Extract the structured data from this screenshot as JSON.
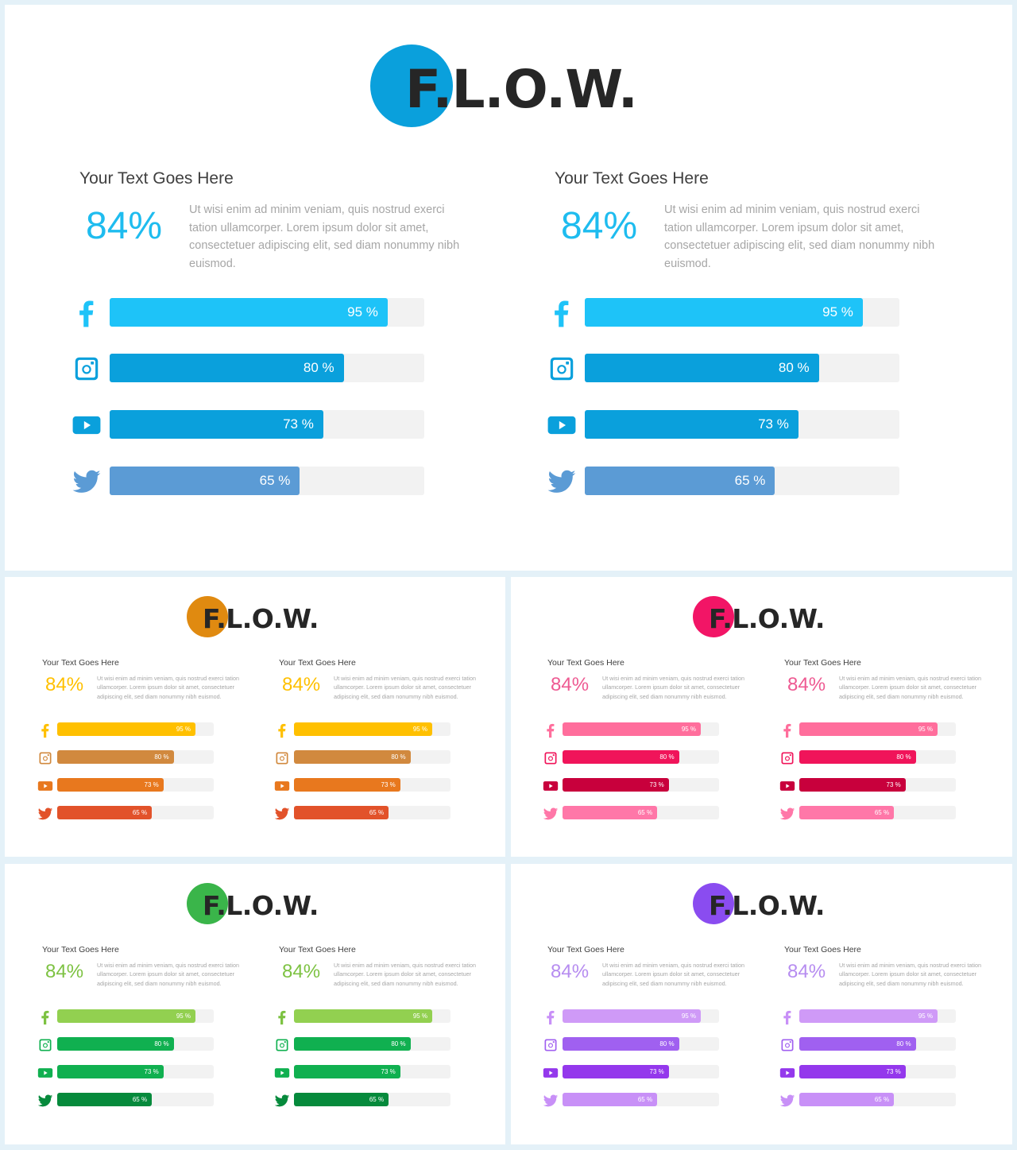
{
  "logo_text": "F.L.O.W.",
  "heading": "Your Text Goes Here",
  "percent": "84%",
  "body": "Ut wisi enim ad minim veniam, quis nostrud exerci tation ullamcorper. Lorem ipsum dolor sit amet, consectetuer adipiscing elit, sed diam nonummy nibh euismod.",
  "stats": [
    {
      "icon": "facebook-icon",
      "value": 95,
      "label": "95 %"
    },
    {
      "icon": "instagram-icon",
      "value": 80,
      "label": "80 %"
    },
    {
      "icon": "youtube-icon",
      "value": 73,
      "label": "73 %"
    },
    {
      "icon": "twitter-icon",
      "value": 65,
      "label": "65 %"
    }
  ],
  "themes": [
    {
      "name": "blue",
      "circle": "#0aa0dc",
      "percent_color": "#1ebcef",
      "bars": [
        "#1ec3f8",
        "#0aa0dc",
        "#0aa0dc",
        "#5b9bd5"
      ],
      "icons": [
        "#1ec3f8",
        "#0aa0dc",
        "#0aa0dc",
        "#5b9bd5"
      ]
    },
    {
      "name": "orange",
      "circle": "#e08a10",
      "percent_color": "#ffc000",
      "bars": [
        "#ffc000",
        "#d1893e",
        "#e8781e",
        "#e2522a"
      ],
      "icons": [
        "#ffc000",
        "#d1893e",
        "#e8781e",
        "#e2522a"
      ]
    },
    {
      "name": "pink",
      "circle": "#f21566",
      "percent_color": "#ee5a92",
      "bars": [
        "#ff6e9c",
        "#f0145a",
        "#c8003c",
        "#ff77a8"
      ],
      "icons": [
        "#ff6e9c",
        "#f0145a",
        "#c8003c",
        "#ff77a8"
      ]
    },
    {
      "name": "green",
      "circle": "#3ab54a",
      "percent_color": "#7dc242",
      "bars": [
        "#92d050",
        "#10b050",
        "#10b050",
        "#068a3c"
      ],
      "icons": [
        "#7dc242",
        "#10b050",
        "#10b050",
        "#068a3c"
      ]
    },
    {
      "name": "purple",
      "circle": "#8a4cf0",
      "percent_color": "#b68cf0",
      "bars": [
        "#cf9af7",
        "#a060f0",
        "#9438ec",
        "#c890f7"
      ],
      "icons": [
        "#c890f7",
        "#a060f0",
        "#9438ec",
        "#c890f7"
      ]
    }
  ]
}
